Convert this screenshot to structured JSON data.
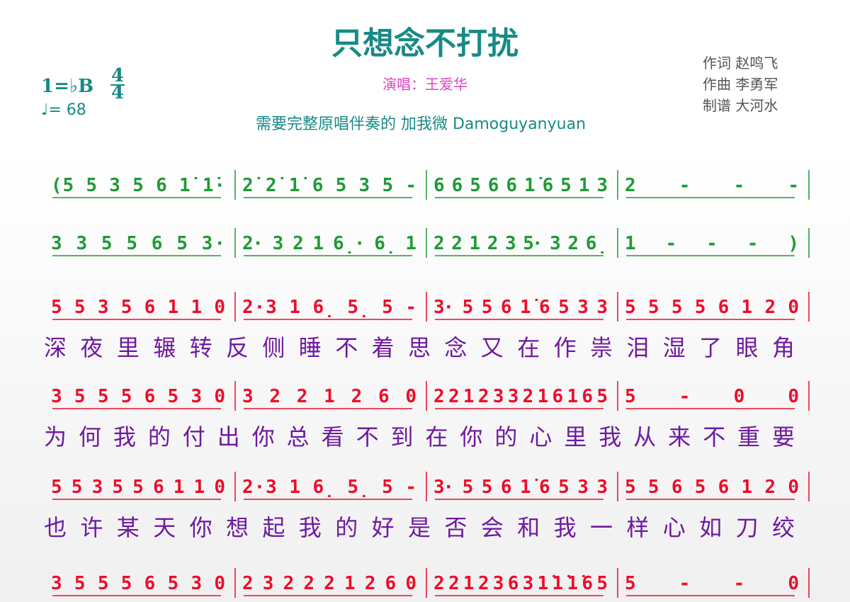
{
  "header": {
    "title": "只想念不打扰",
    "key": "1=♭B",
    "time_top": "4",
    "time_bottom": "4",
    "tempo": "♩= 68",
    "singer": "演唱：王爱华",
    "note": "需要完整原唱伴奏的 加我微 Damoguyanyuan",
    "credits": [
      "作词 赵鸣飞",
      "作曲 李勇军",
      "制谱 大河水"
    ]
  },
  "score": {
    "rows": [
      {
        "measures": [
          "(5 5 3  5 6  1̇  1̇·",
          "2̇ 2̇ 1̇  6 5 3  5 -",
          "6 6 5  6 6 1̇  6 5  1 3",
          "2 - - -"
        ]
      },
      {
        "measures": [
          "3 3 5  5 6  5  3·",
          "2· 3  2 1  6̣·  6̣ 1",
          "2 2 1  2 3  5· 3  2 6̣",
          "1 - - - )"
        ]
      },
      {
        "measures": [
          "5 5 3  5 6  1  1 0",
          "2·3 1 6̣ 5̣ 5 -",
          "3· 5  5 6 1̇  6 5 3 3",
          "5 5  5 5 6 1  2 0"
        ],
        "lyric": "深夜里辗转反侧睡不着思念又在作祟泪湿了眼角"
      },
      {
        "measures": [
          "3 5  5 5 6 5  3 0",
          "3 2  2 1 2 6 0",
          "2 2 1  2 3 3  2 1  6 1 6 5",
          "5 - 0 0"
        ],
        "lyric": "为何我的付出你总看不到在你的心里我从来不重要"
      },
      {
        "measures": [
          "5 5 3 5  5 6  1  1 0",
          "2·3 1 6̣ 5̣ 5 -",
          "3· 5  5 6  1̇  6 5 3 3",
          "5  5 6 5 6 1  2 0"
        ],
        "lyric": "也许某天你想起我的好是否会和我一样心如刀绞"
      },
      {
        "measures": [
          "3 5  5 5 6 5  3 0",
          "2 3 2  2 2  1 2 6 0",
          "2 2 1  2 3  6 3 1̇ 1̇  1̇  6 5",
          "5 - - 0"
        ]
      }
    ]
  }
}
